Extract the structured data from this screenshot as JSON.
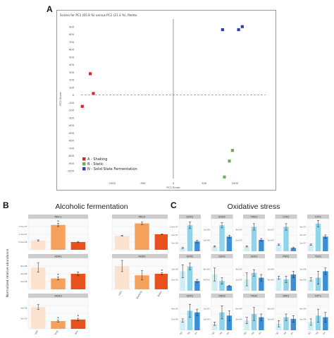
{
  "panels": {
    "a": {
      "letter": "A"
    },
    "b": {
      "letter": "B",
      "title": "Alcoholic fermentation"
    },
    "c": {
      "letter": "C",
      "title": "Oxidative stress"
    }
  },
  "colors": {
    "shaking": "#d62728",
    "static": "#6ab04c",
    "solid_state": "#2b3fb5",
    "b_bars": [
      "#fbe2cf",
      "#f5a15c",
      "#e8511b"
    ],
    "c_bars": [
      "#cdeef5",
      "#8fd4e8",
      "#3b8fd6"
    ],
    "strip": "#cccccc",
    "grid": "#e6e6e6"
  },
  "chart_data": [
    {
      "type": "scatter",
      "title": "Scores for PC1 (65.8 %) versus PC2 (21.3 %), Pareto",
      "xlabel": "PC1 Score",
      "ylabel": "PC2 Score",
      "xlim": [
        -1500,
        1500
      ],
      "ylim": [
        -1100,
        1000
      ],
      "x_ticks": [
        -1000,
        -500,
        0,
        500,
        1000
      ],
      "y_ticks": [
        -1000,
        -900,
        -800,
        -700,
        -600,
        -500,
        -400,
        -300,
        -200,
        -100,
        0,
        100,
        200,
        300,
        400,
        500,
        600,
        700,
        800,
        900
      ],
      "legend_position": "bottom-left",
      "series": [
        {
          "name": "A - Shaking",
          "color_key": "shaking",
          "points": [
            {
              "x": -1350,
              "y": 280,
              "label": ""
            },
            {
              "x": -1300,
              "y": 20,
              "label": ""
            },
            {
              "x": -1480,
              "y": -150,
              "label": ""
            }
          ]
        },
        {
          "name": "B - Static",
          "color_key": "static",
          "points": [
            {
              "x": 830,
              "y": -1080,
              "label": ""
            },
            {
              "x": 910,
              "y": -870,
              "label": ""
            },
            {
              "x": 960,
              "y": -730,
              "label": ""
            }
          ]
        },
        {
          "name": "N - Solid State Fermentation",
          "color_key": "solid_state",
          "points": [
            {
              "x": 800,
              "y": 860,
              "label": ""
            },
            {
              "x": 1060,
              "y": 860,
              "label": ""
            },
            {
              "x": 1120,
              "y": 900,
              "label": ""
            }
          ]
        }
      ]
    },
    {
      "type": "bar",
      "title": "Alcoholic fermentation",
      "ylabel": "Normalized relative abundance",
      "categories": [
        "LGO",
        "Shaking",
        "Static"
      ],
      "facets": [
        {
          "name": "PDC1",
          "values": [
            0.3,
            0.8,
            0.25
          ],
          "errors": [
            0.02,
            0.05,
            0.02
          ],
          "yticks": [
            "1.5e+07",
            "1.0e+07",
            "5.0e+06"
          ],
          "sig": [
            "",
            "*",
            ""
          ]
        },
        {
          "name": "PDC5",
          "values": [
            0.45,
            0.85,
            0.5
          ],
          "errors": [
            0.01,
            0.04,
            0.01
          ],
          "yticks": [],
          "sig": [
            "",
            "",
            ""
          ]
        },
        {
          "name": "ADH1",
          "values": [
            0.7,
            0.35,
            0.5
          ],
          "errors": [
            0.15,
            0.05,
            0.06
          ],
          "yticks": [
            "6e+06",
            "4e+06",
            "2e+06"
          ],
          "sig": [
            "",
            "*",
            ""
          ]
        },
        {
          "name": "ADH2",
          "values": [
            0.75,
            0.45,
            0.5
          ],
          "errors": [
            0.18,
            0.15,
            0.04
          ],
          "yticks": [],
          "sig": [
            "",
            "",
            "*"
          ]
        },
        {
          "name": "ADH3",
          "values": [
            0.7,
            0.25,
            0.3
          ],
          "errors": [
            0.08,
            0.03,
            0.04
          ],
          "yticks": [
            "1e+06",
            "5e+05"
          ],
          "sig": [
            "",
            "*",
            "*"
          ]
        }
      ],
      "x_tick_labels": [
        "LGO",
        "Shaking",
        "Static"
      ]
    },
    {
      "type": "bar",
      "title": "Oxidative stress",
      "categories": [
        "LGO",
        "Shaking",
        "Static"
      ],
      "facets": [
        {
          "name": "SOD1",
          "values": [
            0.1,
            0.8,
            0.3
          ],
          "errors": [
            0.02,
            0.1,
            0.04
          ],
          "yticks": [
            "1.5e+07",
            "1e+07",
            "5e+06"
          ]
        },
        {
          "name": "SOD2",
          "values": [
            0.15,
            0.8,
            0.45
          ],
          "errors": [
            0.02,
            0.08,
            0.04
          ],
          "yticks": [
            "2e+06",
            "1e+06"
          ]
        },
        {
          "name": "TRR1",
          "values": [
            0.15,
            0.75,
            0.35
          ],
          "errors": [
            0.02,
            0.1,
            0.04
          ],
          "yticks": [
            "4e+05",
            "2e+05"
          ]
        },
        {
          "name": "CTA1",
          "values": [
            0.2,
            0.75,
            0.1
          ],
          "errors": [
            0.02,
            0.1,
            0.02
          ],
          "yticks": [
            "3e+07",
            "2e+07"
          ]
        },
        {
          "name": "CTT1",
          "values": [
            0.2,
            0.85,
            0.45
          ],
          "errors": [
            0.02,
            0.1,
            0.05
          ],
          "yticks": [
            "3e+07",
            "2e+07",
            "1e+07"
          ]
        },
        {
          "name": "GPX2",
          "values": [
            0.6,
            0.75,
            0.3
          ],
          "errors": [
            0.2,
            0.1,
            0.05
          ],
          "yticks": [
            "1e+06",
            "5e+05"
          ]
        },
        {
          "name": "GSH1",
          "values": [
            0.5,
            0.3,
            0.15
          ],
          "errors": [
            0.2,
            0.1,
            0.02
          ],
          "yticks": [
            "8e+05",
            "4e+05"
          ]
        },
        {
          "name": "GLR1",
          "values": [
            0.35,
            0.55,
            0.4
          ],
          "errors": [
            0.2,
            0.1,
            0.1
          ],
          "yticks": [
            "4e+05",
            "2e+05"
          ]
        },
        {
          "name": "PRX1",
          "values": [
            0.4,
            0.35,
            0.5
          ],
          "errors": [
            0.05,
            0.1,
            0.1
          ],
          "yticks": [
            "1e+06",
            "5e+05"
          ]
        },
        {
          "name": "TSA1",
          "values": [
            0.35,
            0.4,
            0.6
          ],
          "errors": [
            0.05,
            0.2,
            0.1
          ],
          "yticks": [
            "1e+06",
            "5e+05"
          ]
        },
        {
          "name": "GRX1",
          "values": [
            0.3,
            0.6,
            0.55
          ],
          "errors": [
            0.05,
            0.2,
            0.1
          ],
          "yticks": [
            "4e+04",
            "2e+04"
          ]
        },
        {
          "name": "GRX2",
          "values": [
            0.2,
            0.55,
            0.45
          ],
          "errors": [
            0.05,
            0.2,
            0.15
          ],
          "yticks": [
            "2e+05",
            "1e+05"
          ]
        },
        {
          "name": "TRX2",
          "values": [
            0.3,
            0.5,
            0.4
          ],
          "errors": [
            0.1,
            0.2,
            0.1
          ],
          "yticks": [
            "6e+04",
            "3e+04"
          ]
        },
        {
          "name": "SRX1",
          "values": [
            0.2,
            0.4,
            0.35
          ],
          "errors": [
            0.1,
            0.1,
            0.1
          ],
          "yticks": [
            "6e+04",
            "3e+04"
          ]
        },
        {
          "name": "GTT1",
          "values": [
            0.25,
            0.45,
            0.4
          ],
          "errors": [
            0.1,
            0.2,
            0.15
          ],
          "yticks": [
            "6e+04",
            "3e+04"
          ]
        }
      ],
      "x_tick_labels": [
        "LGO",
        "Shaking",
        "Static"
      ]
    }
  ]
}
